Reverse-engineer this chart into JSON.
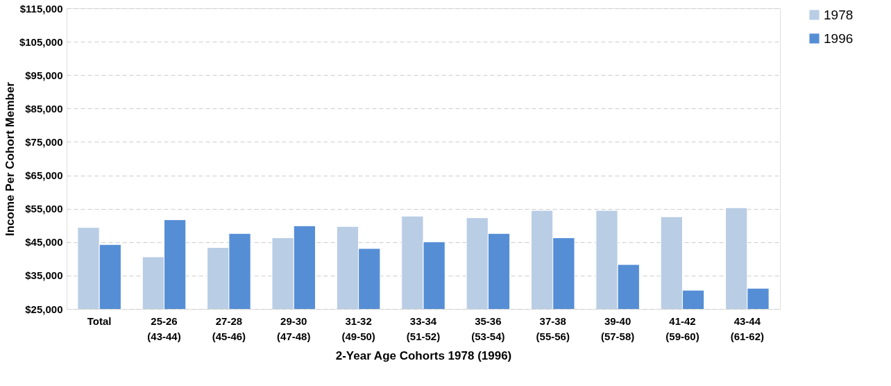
{
  "chart_data": {
    "type": "bar",
    "xlabel": "2-Year Age Cohorts  1978 (1996)",
    "ylabel": "Income Per Cohort Member",
    "categories": [
      "Total",
      "25-26\n(43-44)",
      "27-28\n(45-46)",
      "29-30\n(47-48)",
      "31-32\n(49-50)",
      "33-34\n(51-52)",
      "35-36\n(53-54)",
      "37-38\n(55-56)",
      "39-40\n(57-58)",
      "41-42\n(59-60)",
      "43-44\n(61-62)"
    ],
    "series": [
      {
        "name": "1978",
        "color": "#b9cde5",
        "values": [
          49400,
          40600,
          43400,
          46300,
          49700,
          52800,
          52300,
          54500,
          54500,
          52600,
          55300
        ]
      },
      {
        "name": "1996",
        "color": "#558ed5",
        "values": [
          44300,
          51700,
          47600,
          49900,
          43100,
          45100,
          47600,
          46300,
          38300,
          30600,
          31200
        ]
      }
    ],
    "ylim": [
      25000,
      115000
    ],
    "yticks": [
      {
        "value": 25000,
        "label": "$25,000"
      },
      {
        "value": 35000,
        "label": "$35,000"
      },
      {
        "value": 45000,
        "label": "$45,000"
      },
      {
        "value": 55000,
        "label": "$55,000"
      },
      {
        "value": 65000,
        "label": "$65,000"
      },
      {
        "value": 75000,
        "label": "$75,000"
      },
      {
        "value": 85000,
        "label": "$85,000"
      },
      {
        "value": 95000,
        "label": "$95,000"
      },
      {
        "value": 105000,
        "label": "$105,000"
      },
      {
        "value": 115000,
        "label": "$115,000"
      }
    ],
    "grid": "y",
    "legend": "right"
  }
}
